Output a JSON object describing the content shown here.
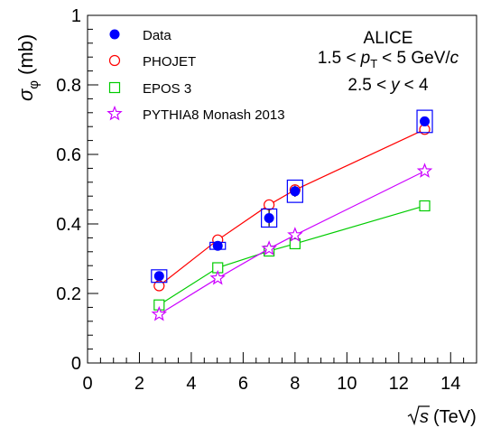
{
  "chart_data": {
    "type": "scatter",
    "title": "",
    "xlabel": "(TeV)",
    "xlabel_sqrt": "s",
    "ylabel": "σ",
    "ylabel_sub": "φ",
    "ylabel_unit": "(mb)",
    "xlim": [
      0,
      15
    ],
    "ylim": [
      0,
      1
    ],
    "x_ticks": [
      0,
      2,
      4,
      6,
      8,
      10,
      12,
      14
    ],
    "y_ticks": [
      0,
      0.2,
      0.4,
      0.6,
      0.8,
      1
    ],
    "x_tick_labels": [
      "0",
      "2",
      "4",
      "6",
      "8",
      "10",
      "12",
      "14"
    ],
    "y_tick_labels": [
      "0",
      "0.2",
      "0.4",
      "0.6",
      "0.8",
      "1"
    ],
    "grid": false,
    "annotations": {
      "experiment": "ALICE",
      "pt_lo": "1.5 <",
      "pt_p": "p",
      "pt_sub": "T",
      "pt_hi": "< 5 GeV/",
      "pt_c": "c",
      "y_lo": "2.5 <",
      "y_var": "y",
      "y_hi": "< 4"
    },
    "legend_position": "top-left",
    "series": [
      {
        "name": "Data",
        "marker": "filled-circle",
        "color": "#0000ff",
        "x": [
          2.76,
          5.02,
          7.0,
          8.0,
          13.0
        ],
        "y": [
          0.25,
          0.337,
          0.417,
          0.494,
          0.695
        ],
        "stat_err": [
          0.012,
          0.008,
          0.024,
          0.016,
          0.009
        ],
        "syst_err": [
          0.018,
          0.01,
          0.026,
          0.032,
          0.032
        ]
      },
      {
        "name": "PHOJET",
        "marker": "open-circle",
        "color": "#ff0000",
        "x": [
          2.76,
          5.02,
          7.0,
          8.0,
          13.0
        ],
        "y": [
          0.222,
          0.354,
          0.455,
          0.498,
          0.672
        ]
      },
      {
        "name": "EPOS 3",
        "marker": "open-square",
        "color": "#00cc00",
        "x": [
          2.76,
          5.02,
          7.0,
          8.0,
          13.0
        ],
        "y": [
          0.167,
          0.274,
          0.322,
          0.343,
          0.452
        ]
      },
      {
        "name": "PYTHIA8 Monash 2013",
        "marker": "open-star",
        "color": "#cc00ff",
        "x": [
          2.76,
          5.02,
          7.0,
          8.0,
          13.0
        ],
        "y": [
          0.14,
          0.244,
          0.329,
          0.368,
          0.552
        ]
      }
    ]
  }
}
